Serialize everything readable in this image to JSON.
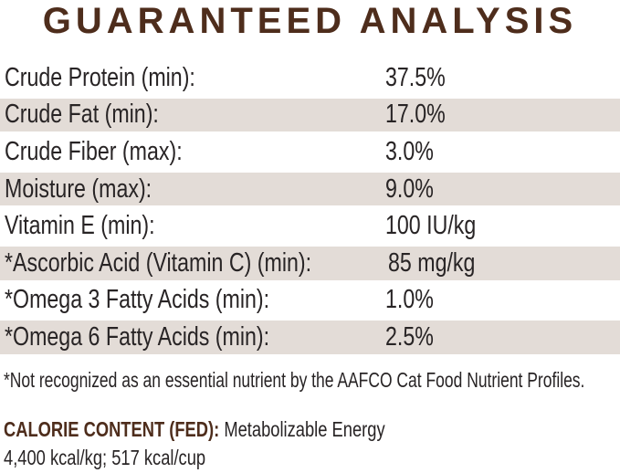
{
  "title": "GUARANTEED ANALYSIS",
  "colors": {
    "brand_brown": "#4e2d1c",
    "row_shade": "#e3dcd7",
    "text_dark": "#282425"
  },
  "table": {
    "rows": [
      {
        "label": "Crude Protein (min):",
        "value": "37.5%"
      },
      {
        "label": "Crude Fat (min):",
        "value": "17.0%"
      },
      {
        "label": "Crude Fiber (max):",
        "value": "3.0%"
      },
      {
        "label": "Moisture (max):",
        "value": "9.0%"
      },
      {
        "label": "Vitamin E (min):",
        "value": "100 IU/kg"
      },
      {
        "label": "*Ascorbic Acid (Vitamin C) (min):",
        "value": "85 mg/kg"
      },
      {
        "label": "*Omega 3 Fatty Acids (min):",
        "value": "1.0%"
      },
      {
        "label": "*Omega 6 Fatty Acids (min):",
        "value": "2.5%"
      }
    ]
  },
  "footnote": "*Not recognized as an essential nutrient by the AAFCO Cat Food Nutrient Profiles.",
  "calorie": {
    "heading": "CALORIE CONTENT (FED):",
    "description": "Metabolizable Energy",
    "values": "4,400 kcal/kg; 517 kcal/cup"
  }
}
